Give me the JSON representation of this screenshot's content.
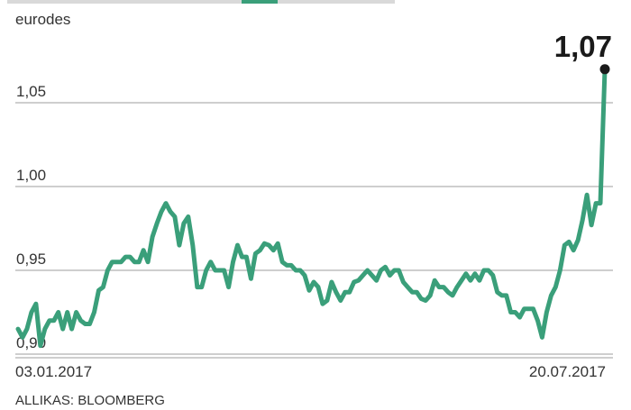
{
  "chart_data": {
    "type": "line",
    "unit_label": "eurodes",
    "source": "ALLIKAS: BLOOMBERG",
    "x_start_label": "03.01.2017",
    "x_end_label": "20.07.2017",
    "last_value_label": "1,07",
    "y_ticks": [
      {
        "value": 0.9,
        "label": "0,90"
      },
      {
        "value": 0.95,
        "label": "0,95"
      },
      {
        "value": 1.0,
        "label": "1,00"
      },
      {
        "value": 1.05,
        "label": "1,05"
      }
    ],
    "ylim": [
      0.895,
      1.075
    ],
    "grid": true,
    "colors": {
      "line": "#3a9f7a",
      "grid": "#9e9e9e",
      "endpoint": "#1a1a1a",
      "text": "#333333"
    },
    "series": [
      {
        "values": [
          0.915,
          0.91,
          0.915,
          0.925,
          0.93,
          0.905,
          0.915,
          0.92,
          0.92,
          0.925,
          0.915,
          0.925,
          0.915,
          0.925,
          0.92,
          0.918,
          0.918,
          0.925,
          0.938,
          0.94,
          0.95,
          0.955,
          0.955,
          0.955,
          0.958,
          0.958,
          0.955,
          0.955,
          0.962,
          0.955,
          0.97,
          0.978,
          0.985,
          0.99,
          0.985,
          0.982,
          0.965,
          0.978,
          0.982,
          0.965,
          0.94,
          0.94,
          0.95,
          0.955,
          0.95,
          0.95,
          0.95,
          0.94,
          0.955,
          0.965,
          0.958,
          0.958,
          0.945,
          0.96,
          0.962,
          0.966,
          0.965,
          0.962,
          0.966,
          0.955,
          0.953,
          0.953,
          0.95,
          0.95,
          0.947,
          0.938,
          0.943,
          0.94,
          0.93,
          0.932,
          0.943,
          0.937,
          0.932,
          0.937,
          0.937,
          0.943,
          0.944,
          0.947,
          0.95,
          0.947,
          0.944,
          0.95,
          0.952,
          0.947,
          0.95,
          0.95,
          0.943,
          0.94,
          0.937,
          0.937,
          0.933,
          0.932,
          0.935,
          0.944,
          0.94,
          0.94,
          0.937,
          0.935,
          0.94,
          0.944,
          0.948,
          0.944,
          0.948,
          0.944,
          0.95,
          0.95,
          0.947,
          0.937,
          0.935,
          0.935,
          0.925,
          0.925,
          0.922,
          0.927,
          0.927,
          0.927,
          0.92,
          0.91,
          0.925,
          0.935,
          0.94,
          0.95,
          0.965,
          0.967,
          0.962,
          0.968,
          0.98,
          0.995,
          0.977,
          0.99,
          0.99,
          1.07
        ]
      }
    ]
  }
}
